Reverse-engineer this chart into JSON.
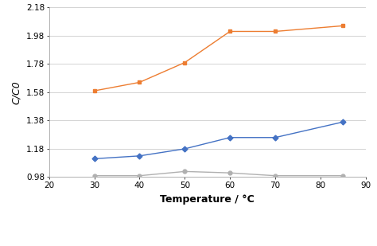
{
  "temperature": [
    30,
    40,
    50,
    60,
    70,
    85
  ],
  "rh40": [
    0.99,
    0.99,
    1.02,
    1.01,
    0.99,
    0.99
  ],
  "rh60": [
    1.11,
    1.13,
    1.18,
    1.26,
    1.26,
    1.37
  ],
  "rh80": [
    1.59,
    1.65,
    1.79,
    2.01,
    2.01,
    2.05
  ],
  "color_40": "#b0b0b0",
  "color_60": "#4472c4",
  "color_80": "#ed7d31",
  "xlabel": "Temperature / °C",
  "ylabel": "C/C0",
  "ylim": [
    0.98,
    2.18
  ],
  "xlim": [
    20,
    90
  ],
  "yticks": [
    0.98,
    1.18,
    1.38,
    1.58,
    1.78,
    1.98,
    2.18
  ],
  "xticks": [
    20,
    30,
    40,
    50,
    60,
    70,
    80,
    90
  ],
  "marker_40": "o",
  "marker_60": "D",
  "marker_80": "s",
  "bg_color": "#ffffff",
  "grid_color": "#d3d3d3",
  "figsize": [
    4.74,
    3.09
  ],
  "dpi": 100
}
